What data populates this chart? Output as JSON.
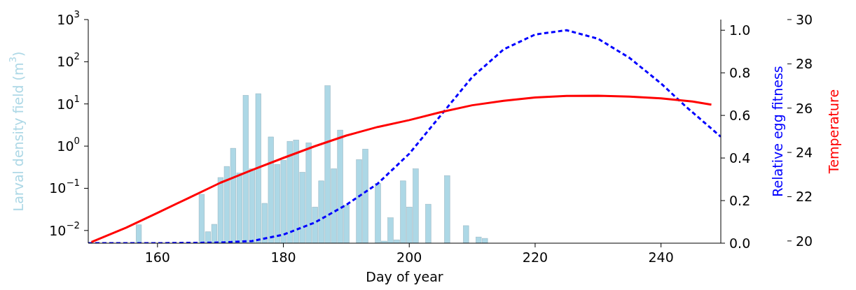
{
  "chart_data": {
    "type": "bar",
    "xlabel": "Day of year",
    "ylabel": "Larval density field (m$^{3}$)",
    "y2label": "Relative egg fitness",
    "y3label": "Temperature",
    "xlim": [
      149,
      249.5
    ],
    "xticks": [
      160,
      180,
      200,
      220,
      240
    ],
    "log": "y",
    "ylim": [
      0.005,
      1000
    ],
    "yticks": [
      {
        "value": 0.01,
        "label": "10$^{−2}$"
      },
      {
        "value": 0.1,
        "label": "10$^{−1}$"
      },
      {
        "value": 1,
        "label": "10$^{0}$"
      },
      {
        "value": 10,
        "label": "10$^{1}$"
      },
      {
        "value": 100,
        "label": "10$^{2}$"
      },
      {
        "value": 1000,
        "label": "10$^{3}$"
      }
    ],
    "y2lim": [
      0,
      1.05
    ],
    "y2ticks": [
      {
        "value": 0,
        "label": "0.0"
      },
      0.2,
      0.4,
      0.6,
      0.8,
      {
        "value": 1,
        "label": "1.0"
      }
    ],
    "y3lim": [
      19.9,
      30
    ],
    "y3ticks": [
      20,
      22,
      24,
      26,
      28,
      30
    ],
    "grid": false,
    "legend": false,
    "series": [
      {
        "color": "#add8e6",
        "x": [
          157,
          164,
          167,
          168,
          169,
          170,
          171,
          172,
          173,
          174,
          175,
          176,
          177,
          178,
          179,
          180,
          181,
          182,
          183,
          184,
          185,
          186,
          187,
          188,
          189,
          190,
          191,
          192,
          193,
          195,
          196,
          197,
          198,
          199,
          200,
          201,
          203,
          206,
          209,
          211,
          212
        ],
        "values": [
          0.0136,
          null,
          0.072,
          0.0093,
          0.014,
          0.18,
          0.33,
          0.89,
          0.23,
          16,
          0.29,
          17.5,
          0.044,
          1.65,
          0.37,
          0.46,
          1.3,
          1.4,
          0.24,
          1.2,
          0.036,
          0.15,
          27,
          0.29,
          2.4,
          0.04,
          null,
          0.48,
          0.85,
          0.13,
          0.0056,
          0.02,
          0.006,
          0.15,
          0.036,
          0.29,
          0.042,
          0.2,
          0.013,
          0.007,
          0.0065
        ]
      },
      {
        "type": "line",
        "axis": "y2",
        "color": "#0000ff",
        "line_style": "dashed",
        "x": [
          149,
          160,
          170,
          175,
          180,
          185,
          190,
          195,
          200,
          205,
          210,
          215,
          220,
          225,
          230,
          235,
          240,
          244,
          249.5
        ],
        "values": [
          0,
          0,
          0.003,
          0.01,
          0.04,
          0.097,
          0.18,
          0.28,
          0.42,
          0.6,
          0.78,
          0.91,
          0.98,
          1.0,
          0.96,
          0.87,
          0.75,
          0.64,
          0.5
        ]
      },
      {
        "type": "line",
        "axis": "y3",
        "color": "#ff0000",
        "line_style": "solid",
        "x": [
          149.5,
          155,
          160,
          165,
          170,
          175,
          180,
          185,
          190,
          195,
          200,
          205,
          210,
          215,
          220,
          225,
          230,
          235,
          240,
          245,
          248
        ],
        "values": [
          19.95,
          20.6,
          21.27,
          21.95,
          22.63,
          23.2,
          23.75,
          24.28,
          24.76,
          25.15,
          25.46,
          25.82,
          26.13,
          26.33,
          26.48,
          26.55,
          26.56,
          26.52,
          26.44,
          26.3,
          26.16
        ]
      }
    ]
  }
}
